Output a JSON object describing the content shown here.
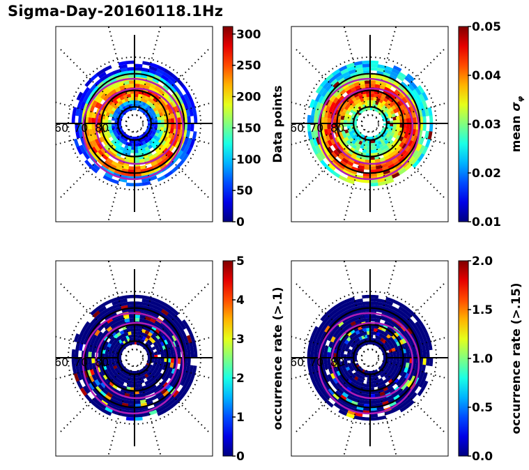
{
  "figure": {
    "title": "Sigma-Day-20160118.1Hz"
  },
  "chart_data": [
    {
      "type": "heatmap",
      "projection": "polar",
      "panel": "top-left",
      "title": "",
      "latitude_labels": [
        "60",
        "70",
        "80"
      ],
      "colormap": "jet",
      "colorbar": {
        "label": "Data points",
        "label_math": "",
        "range": [
          0,
          312
        ],
        "ticks": [
          0,
          50,
          100,
          150,
          200,
          250,
          300
        ],
        "tick_labels": [
          "0",
          "50",
          "100",
          "150",
          "200",
          "250",
          "300"
        ]
      },
      "overlay": "two magenta auroral oval contours",
      "dominant_level": 0.45
    },
    {
      "type": "heatmap",
      "projection": "polar",
      "panel": "top-right",
      "title": "",
      "latitude_labels": [
        "60",
        "70",
        "80"
      ],
      "colormap": "jet",
      "colorbar": {
        "label": "mean ",
        "label_math": "σ",
        "label_sub": "φ",
        "range": [
          0.01,
          0.05
        ],
        "ticks": [
          0.01,
          0.02,
          0.03,
          0.04,
          0.05
        ],
        "tick_labels": [
          "0.01",
          "0.02",
          "0.03",
          "0.04",
          "0.05"
        ]
      },
      "overlay": "two magenta auroral oval contours",
      "dominant_level": 0.35
    },
    {
      "type": "heatmap",
      "projection": "polar",
      "panel": "bottom-left",
      "title": "",
      "latitude_labels": [
        "60",
        "70",
        "80"
      ],
      "colormap": "jet",
      "colorbar": {
        "label": "occurrence rate (>.1)",
        "label_math": "",
        "range": [
          0,
          5
        ],
        "ticks": [
          0,
          1,
          2,
          3,
          4,
          5
        ],
        "tick_labels": [
          "0",
          "1",
          "2",
          "3",
          "4",
          "5"
        ]
      },
      "overlay": "two magenta auroral oval contours",
      "dominant_level": 0.0
    },
    {
      "type": "heatmap",
      "projection": "polar",
      "panel": "bottom-right",
      "title": "",
      "latitude_labels": [
        "60",
        "70",
        "80"
      ],
      "colormap": "jet",
      "colorbar": {
        "label": "occurrence rate (>.15)",
        "label_math": "",
        "range": [
          0.0,
          2.0
        ],
        "ticks": [
          0.0,
          0.5,
          1.0,
          1.5,
          2.0
        ],
        "tick_labels": [
          "0.0",
          "0.5",
          "1.0",
          "1.5",
          "2.0"
        ]
      },
      "overlay": "two magenta auroral oval contours",
      "dominant_level": 0.0
    }
  ],
  "colors": {
    "oval": "#b01cb5",
    "grid": "#000000"
  }
}
